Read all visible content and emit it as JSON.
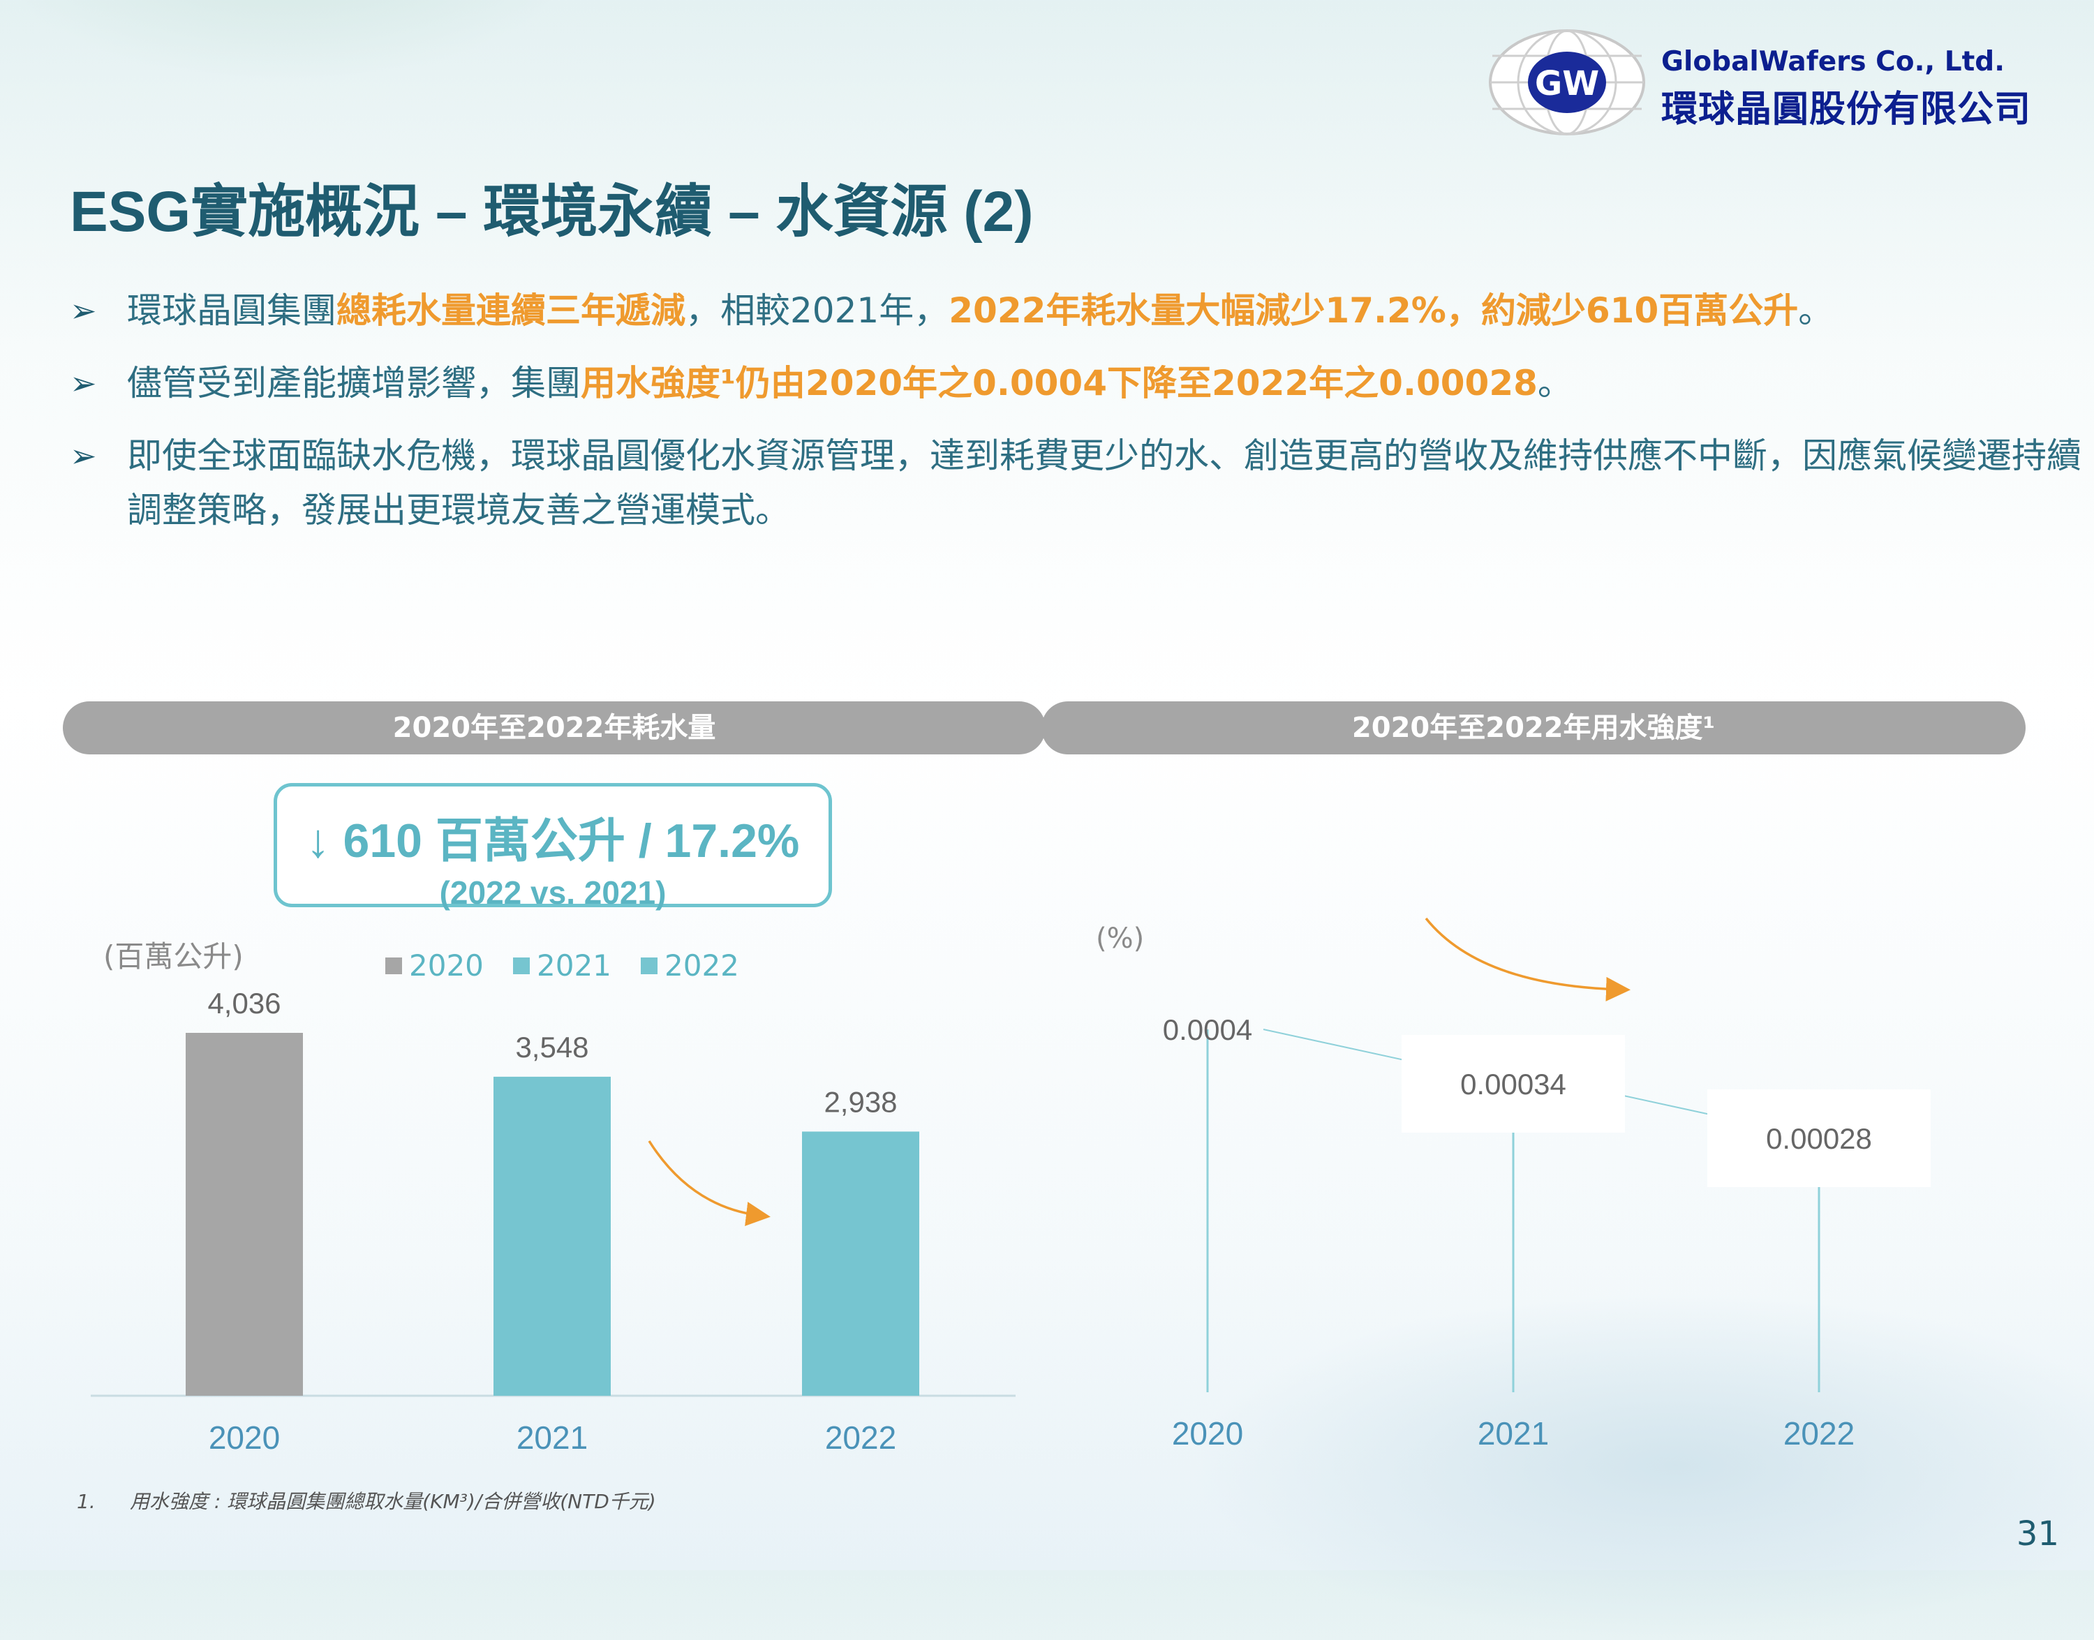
{
  "logo": {
    "mark": "GW",
    "company_en": "GlobalWafers  Co.,  Ltd.",
    "company_zh": "環球晶圓股份有限公司"
  },
  "title": "ESG實施概況 – 環境永續 – 水資源 (2)",
  "bullets": [
    {
      "icon": "arrow-bullet-icon",
      "parts": [
        {
          "text": "環球晶圓集團",
          "hl": false
        },
        {
          "text": "總耗水量連續三年遞減",
          "hl": true
        },
        {
          "text": "，相較2021年，",
          "hl": false
        },
        {
          "text": "2022年耗水量大幅減少17.2%，約減少610百萬公升",
          "hl": true
        },
        {
          "text": "。",
          "hl": false
        }
      ]
    },
    {
      "icon": "arrow-bullet-icon",
      "parts": [
        {
          "text": "儘管受到產能擴增影響，集團",
          "hl": false
        },
        {
          "text": "用水強度¹仍由2020年之0.0004下降至2022年之0.00028",
          "hl": true
        },
        {
          "text": "。",
          "hl": false
        }
      ]
    },
    {
      "icon": "arrow-bullet-icon",
      "parts": [
        {
          "text": "即使全球面臨缺水危機，環球晶圓優化水資源管理，達到耗費更少的水、創造更高的營收及維持供應不中斷，因應氣候變遷持續調整策略，發展出更環境友善之營運模式。",
          "hl": false
        }
      ]
    }
  ],
  "colors": {
    "bar_2020": "#a6a6a6",
    "bar_2021": "#76c5d0",
    "bar_2022": "#76c5d0",
    "accent_orange": "#ef9a2e",
    "teal_text": "#5bb5c3",
    "axis_label": "#4a92b8"
  },
  "callout": {
    "main": "↓ 610 百萬公升 / 17.2%",
    "sub": "(2022 vs. 2021)"
  },
  "chart_data": [
    {
      "type": "bar",
      "title": "2020年至2022年耗水量",
      "ylabel": "(百萬公升)",
      "categories": [
        "2020",
        "2021",
        "2022"
      ],
      "values": [
        4036,
        3548,
        2938
      ],
      "value_labels": [
        "4,036",
        "3,548",
        "2,938"
      ],
      "legend": [
        "2020",
        "2021",
        "2022"
      ],
      "legend_position": "top",
      "ylim": [
        0,
        4500
      ],
      "grid": false
    },
    {
      "type": "line",
      "title": "2020年至2022年用水強度¹",
      "ylabel": "(%)",
      "categories": [
        "2020",
        "2021",
        "2022"
      ],
      "values": [
        0.0004,
        0.00034,
        0.00028
      ],
      "value_labels": [
        "0.0004",
        "0.00034",
        "0.00028"
      ],
      "grid": false
    }
  ],
  "footnote": {
    "number": "1.",
    "text": "用水強度 : 環球晶圓集團總取水量(KM³)/合併營收(NTD千元)"
  },
  "page_number": "31"
}
